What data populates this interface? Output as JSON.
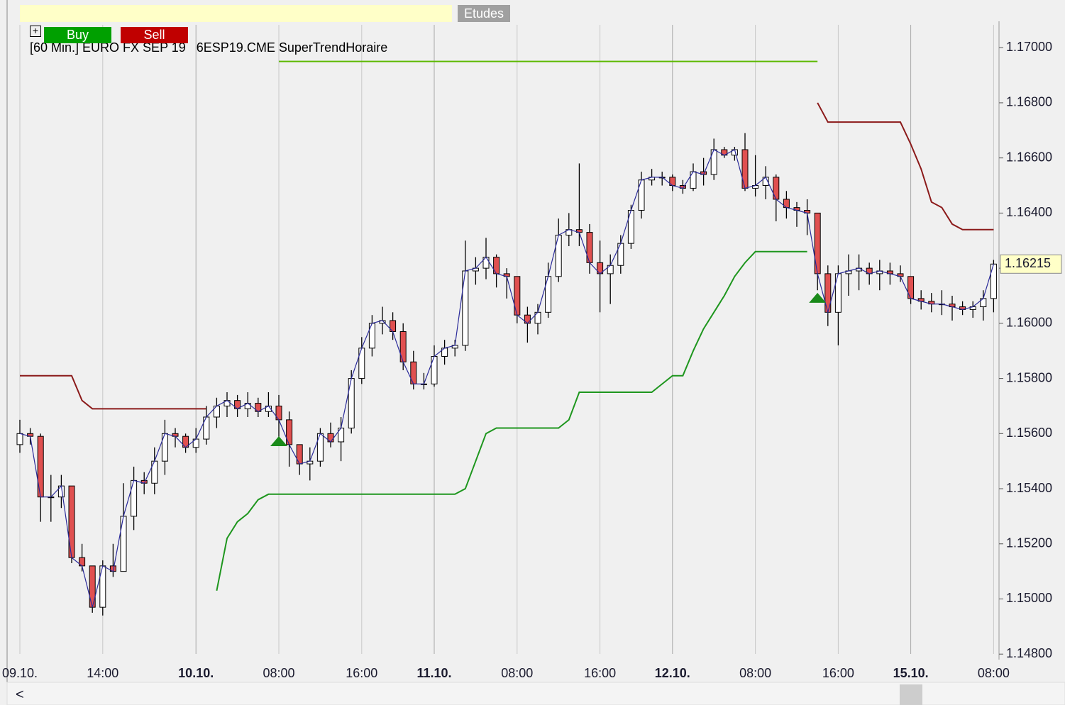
{
  "toolbar": {
    "title": "[60 Min.] EURO FX SEP 19   6ESP19.CME SuperTrendHoraire",
    "studies": "Etudes",
    "buy": "Buy",
    "sell": "Sell"
  },
  "chart_data": {
    "type": "candlestick",
    "up_color": "#ffffff",
    "down_color": "#e05050",
    "close_line_color": "#2b2b9a",
    "ylim": [
      1.1478,
      1.1707
    ],
    "yticks": [
      {
        "value": 1.17,
        "label": "1.17000"
      },
      {
        "value": 1.168,
        "label": "1.16800"
      },
      {
        "value": 1.166,
        "label": "1.16600"
      },
      {
        "value": 1.164,
        "label": "1.16400"
      },
      {
        "value": 1.162,
        "label": "1.16200"
      },
      {
        "value": 1.16,
        "label": "1.16000"
      },
      {
        "value": 1.158,
        "label": "1.15800"
      },
      {
        "value": 1.156,
        "label": "1.15600"
      },
      {
        "value": 1.154,
        "label": "1.15400"
      },
      {
        "value": 1.152,
        "label": "1.15200"
      },
      {
        "value": 1.15,
        "label": "1.15000"
      },
      {
        "value": 1.148,
        "label": "1.14800"
      }
    ],
    "xticks": [
      {
        "value": 0,
        "label": "09.10."
      },
      {
        "value": 8,
        "label": "14:00"
      },
      {
        "value": 17,
        "label": "10.10.",
        "bold": true
      },
      {
        "value": 25,
        "label": "08:00"
      },
      {
        "value": 33,
        "label": "16:00"
      },
      {
        "value": 40,
        "label": "11.10.",
        "bold": true
      },
      {
        "value": 48,
        "label": "08:00"
      },
      {
        "value": 56,
        "label": "16:00"
      },
      {
        "value": 63,
        "label": "12.10.",
        "bold": true
      },
      {
        "value": 71,
        "label": "08:00"
      },
      {
        "value": 79,
        "label": "16:00"
      },
      {
        "value": 86,
        "label": "15.10.",
        "bold": true
      },
      {
        "value": 94,
        "label": "08:00"
      }
    ],
    "candles": [
      [
        1.1556,
        1.1565,
        1.1553,
        1.156
      ],
      [
        1.156,
        1.1562,
        1.1556,
        1.1559
      ],
      [
        1.1559,
        1.156,
        1.1528,
        1.1537
      ],
      [
        1.1537,
        1.1545,
        1.1528,
        1.1537
      ],
      [
        1.1537,
        1.1545,
        1.1533,
        1.1541
      ],
      [
        1.1541,
        1.1541,
        1.1513,
        1.1515
      ],
      [
        1.1515,
        1.152,
        1.151,
        1.1512
      ],
      [
        1.1512,
        1.1512,
        1.1495,
        1.1497
      ],
      [
        1.1497,
        1.1514,
        1.1494,
        1.1512
      ],
      [
        1.1512,
        1.152,
        1.1508,
        1.151
      ],
      [
        1.151,
        1.1542,
        1.151,
        1.153
      ],
      [
        1.153,
        1.1548,
        1.1525,
        1.1543
      ],
      [
        1.1543,
        1.1546,
        1.1538,
        1.1542
      ],
      [
        1.1542,
        1.1555,
        1.1538,
        1.155
      ],
      [
        1.155,
        1.1565,
        1.1545,
        1.156
      ],
      [
        1.156,
        1.1562,
        1.1555,
        1.1559
      ],
      [
        1.1559,
        1.156,
        1.1553,
        1.1555
      ],
      [
        1.1555,
        1.1562,
        1.1553,
        1.1558
      ],
      [
        1.1558,
        1.157,
        1.1556,
        1.1566
      ],
      [
        1.1566,
        1.1573,
        1.1562,
        1.157
      ],
      [
        1.157,
        1.1575,
        1.1566,
        1.1572
      ],
      [
        1.1572,
        1.1574,
        1.1566,
        1.1569
      ],
      [
        1.1569,
        1.1575,
        1.1566,
        1.1571
      ],
      [
        1.1571,
        1.1573,
        1.1566,
        1.1568
      ],
      [
        1.1568,
        1.1575,
        1.1566,
        1.157
      ],
      [
        1.157,
        1.1574,
        1.1558,
        1.1565
      ],
      [
        1.1565,
        1.1568,
        1.1548,
        1.1556
      ],
      [
        1.1556,
        1.1556,
        1.1545,
        1.1549
      ],
      [
        1.1549,
        1.1555,
        1.1543,
        1.155
      ],
      [
        1.155,
        1.1562,
        1.1548,
        1.156
      ],
      [
        1.156,
        1.1564,
        1.1555,
        1.1557
      ],
      [
        1.1557,
        1.1566,
        1.155,
        1.1562
      ],
      [
        1.1562,
        1.1583,
        1.156,
        1.158
      ],
      [
        1.158,
        1.1595,
        1.1578,
        1.1591
      ],
      [
        1.1591,
        1.1603,
        1.1588,
        1.16
      ],
      [
        1.16,
        1.1606,
        1.1596,
        1.1601
      ],
      [
        1.1601,
        1.1604,
        1.1594,
        1.1597
      ],
      [
        1.1597,
        1.16,
        1.1583,
        1.1586
      ],
      [
        1.1586,
        1.159,
        1.1576,
        1.1578
      ],
      [
        1.1578,
        1.1582,
        1.1576,
        1.1578
      ],
      [
        1.1578,
        1.1592,
        1.1577,
        1.1588
      ],
      [
        1.1588,
        1.1594,
        1.1585,
        1.1591
      ],
      [
        1.1591,
        1.1594,
        1.1588,
        1.1592
      ],
      [
        1.1592,
        1.163,
        1.159,
        1.1619
      ],
      [
        1.1619,
        1.1624,
        1.1614,
        1.162
      ],
      [
        1.162,
        1.1631,
        1.1616,
        1.1624
      ],
      [
        1.1624,
        1.1625,
        1.1613,
        1.1618
      ],
      [
        1.1618,
        1.162,
        1.1609,
        1.1617
      ],
      [
        1.1617,
        1.1617,
        1.16,
        1.1603
      ],
      [
        1.1603,
        1.1606,
        1.1593,
        1.16
      ],
      [
        1.16,
        1.1607,
        1.1596,
        1.1604
      ],
      [
        1.1604,
        1.1622,
        1.1602,
        1.1617
      ],
      [
        1.1617,
        1.1638,
        1.1615,
        1.1632
      ],
      [
        1.1632,
        1.164,
        1.1628,
        1.1634
      ],
      [
        1.1634,
        1.1658,
        1.1628,
        1.1633
      ],
      [
        1.1633,
        1.1636,
        1.1618,
        1.1622
      ],
      [
        1.1622,
        1.163,
        1.1604,
        1.1618
      ],
      [
        1.1618,
        1.1625,
        1.1607,
        1.1621
      ],
      [
        1.1621,
        1.1632,
        1.1618,
        1.1629
      ],
      [
        1.1629,
        1.1643,
        1.1627,
        1.1641
      ],
      [
        1.1641,
        1.1655,
        1.1638,
        1.1652
      ],
      [
        1.1652,
        1.1656,
        1.165,
        1.1653
      ],
      [
        1.1653,
        1.1655,
        1.165,
        1.1653
      ],
      [
        1.1653,
        1.1654,
        1.1648,
        1.165
      ],
      [
        1.165,
        1.1652,
        1.1647,
        1.1649
      ],
      [
        1.1649,
        1.1658,
        1.1648,
        1.1655
      ],
      [
        1.1655,
        1.166,
        1.165,
        1.1654
      ],
      [
        1.1654,
        1.1667,
        1.1652,
        1.1663
      ],
      [
        1.1663,
        1.1664,
        1.166,
        1.1661
      ],
      [
        1.1661,
        1.1664,
        1.1659,
        1.1663
      ],
      [
        1.1663,
        1.1669,
        1.1648,
        1.1649
      ],
      [
        1.1649,
        1.1661,
        1.1646,
        1.165
      ],
      [
        1.165,
        1.1657,
        1.1645,
        1.1653
      ],
      [
        1.1653,
        1.1654,
        1.1637,
        1.1645
      ],
      [
        1.1645,
        1.1648,
        1.1638,
        1.1642
      ],
      [
        1.1642,
        1.1644,
        1.1635,
        1.1641
      ],
      [
        1.1641,
        1.1645,
        1.1632,
        1.164
      ],
      [
        1.164,
        1.164,
        1.1612,
        1.1618
      ],
      [
        1.1618,
        1.1621,
        1.1599,
        1.1604
      ],
      [
        1.1604,
        1.1621,
        1.1592,
        1.1618
      ],
      [
        1.1618,
        1.1625,
        1.161,
        1.1619
      ],
      [
        1.1619,
        1.1625,
        1.1612,
        1.162
      ],
      [
        1.162,
        1.1622,
        1.1614,
        1.1618
      ],
      [
        1.1618,
        1.1623,
        1.1612,
        1.1619
      ],
      [
        1.1619,
        1.1622,
        1.1614,
        1.1618
      ],
      [
        1.1618,
        1.1621,
        1.1615,
        1.1617
      ],
      [
        1.1617,
        1.1617,
        1.1607,
        1.1609
      ],
      [
        1.1609,
        1.1612,
        1.1605,
        1.1608
      ],
      [
        1.1608,
        1.1611,
        1.1604,
        1.1607
      ],
      [
        1.1607,
        1.1612,
        1.1603,
        1.1607
      ],
      [
        1.1607,
        1.161,
        1.1601,
        1.1606
      ],
      [
        1.1606,
        1.1608,
        1.1603,
        1.1605
      ],
      [
        1.1605,
        1.1608,
        1.1602,
        1.1606
      ],
      [
        1.1606,
        1.1612,
        1.1601,
        1.1609
      ],
      [
        1.1609,
        1.1623,
        1.1604,
        1.16215
      ]
    ],
    "series": [
      {
        "color": "#8b1a1a",
        "values": [
          1.1581,
          1.1581,
          1.1581,
          1.1581,
          1.1581,
          1.1581,
          1.1572,
          1.1569,
          1.1569,
          1.1569,
          1.1569,
          1.1569,
          1.1569,
          1.1569,
          1.1569,
          1.1569,
          1.1569,
          1.1569,
          1.1569,
          null,
          null,
          null,
          null,
          null,
          null,
          null,
          null,
          null,
          null,
          null,
          null,
          null,
          null,
          null,
          null,
          null,
          null,
          null,
          null,
          null,
          null,
          null,
          null,
          null,
          null,
          null,
          null,
          null,
          null,
          null,
          null,
          null,
          null,
          null,
          null,
          null,
          null,
          null,
          null,
          null,
          null,
          null,
          null,
          null,
          null,
          null,
          null,
          null,
          null,
          null,
          null,
          null,
          null,
          null,
          null,
          null,
          null,
          1.168,
          1.1673,
          1.1673,
          1.1673,
          1.1673,
          1.1673,
          1.1673,
          1.1673,
          1.1673,
          1.1665,
          1.1656,
          1.1644,
          1.1642,
          1.1636,
          1.1634,
          1.1634,
          1.1634,
          1.1634
        ]
      },
      {
        "color": "#1e961e",
        "values": [
          null,
          null,
          null,
          null,
          null,
          null,
          null,
          null,
          null,
          null,
          null,
          null,
          null,
          null,
          null,
          null,
          null,
          null,
          null,
          1.1503,
          1.1522,
          1.1528,
          1.1531,
          1.1536,
          1.1538,
          1.1538,
          1.1538,
          1.1538,
          1.1538,
          1.1538,
          1.1538,
          1.1538,
          1.1538,
          1.1538,
          1.1538,
          1.1538,
          1.1538,
          1.1538,
          1.1538,
          1.1538,
          1.1538,
          1.1538,
          1.1538,
          1.154,
          1.155,
          1.156,
          1.1562,
          1.1562,
          1.1562,
          1.1562,
          1.1562,
          1.1562,
          1.1562,
          1.1565,
          1.1575,
          1.1575,
          1.1575,
          1.1575,
          1.1575,
          1.1575,
          1.1575,
          1.1575,
          1.1578,
          1.1581,
          1.1581,
          1.159,
          1.1598,
          1.1604,
          1.161,
          1.1617,
          1.1622,
          1.1626,
          1.1626,
          1.1626,
          1.1626,
          1.1626,
          1.1626,
          null,
          null,
          null,
          null,
          null,
          null,
          null,
          null,
          null,
          null,
          null,
          null,
          null,
          null,
          null,
          null,
          null,
          null
        ]
      },
      {
        "color": "#5cb800",
        "values": [
          null,
          null,
          null,
          null,
          null,
          null,
          null,
          null,
          null,
          null,
          null,
          null,
          null,
          null,
          null,
          null,
          null,
          null,
          null,
          null,
          null,
          null,
          null,
          null,
          null,
          1.1695,
          1.1695,
          1.1695,
          1.1695,
          1.1695,
          1.1695,
          1.1695,
          1.1695,
          1.1695,
          1.1695,
          1.1695,
          1.1695,
          1.1695,
          1.1695,
          1.1695,
          1.1695,
          1.1695,
          1.1695,
          1.1695,
          1.1695,
          1.1695,
          1.1695,
          1.1695,
          1.1695,
          1.1695,
          1.1695,
          1.1695,
          1.1695,
          1.1695,
          1.1695,
          1.1695,
          1.1695,
          1.1695,
          1.1695,
          1.1695,
          1.1695,
          1.1695,
          1.1695,
          1.1695,
          1.1695,
          1.1695,
          1.1695,
          1.1695,
          1.1695,
          1.1695,
          1.1695,
          1.1695,
          1.1695,
          1.1695,
          1.1695,
          1.1695,
          1.1695,
          1.1695,
          null,
          null,
          null,
          null,
          null,
          null,
          null,
          null,
          null,
          null,
          null,
          null,
          null,
          null,
          null,
          null,
          null
        ]
      }
    ],
    "signals": [
      {
        "index": 25,
        "value": 1.1557,
        "color": "#1a8a1a"
      },
      {
        "index": 77,
        "value": 1.1609,
        "color": "#1a8a1a"
      }
    ],
    "last_price": {
      "value": 1.16215,
      "label": "1.16215"
    }
  }
}
